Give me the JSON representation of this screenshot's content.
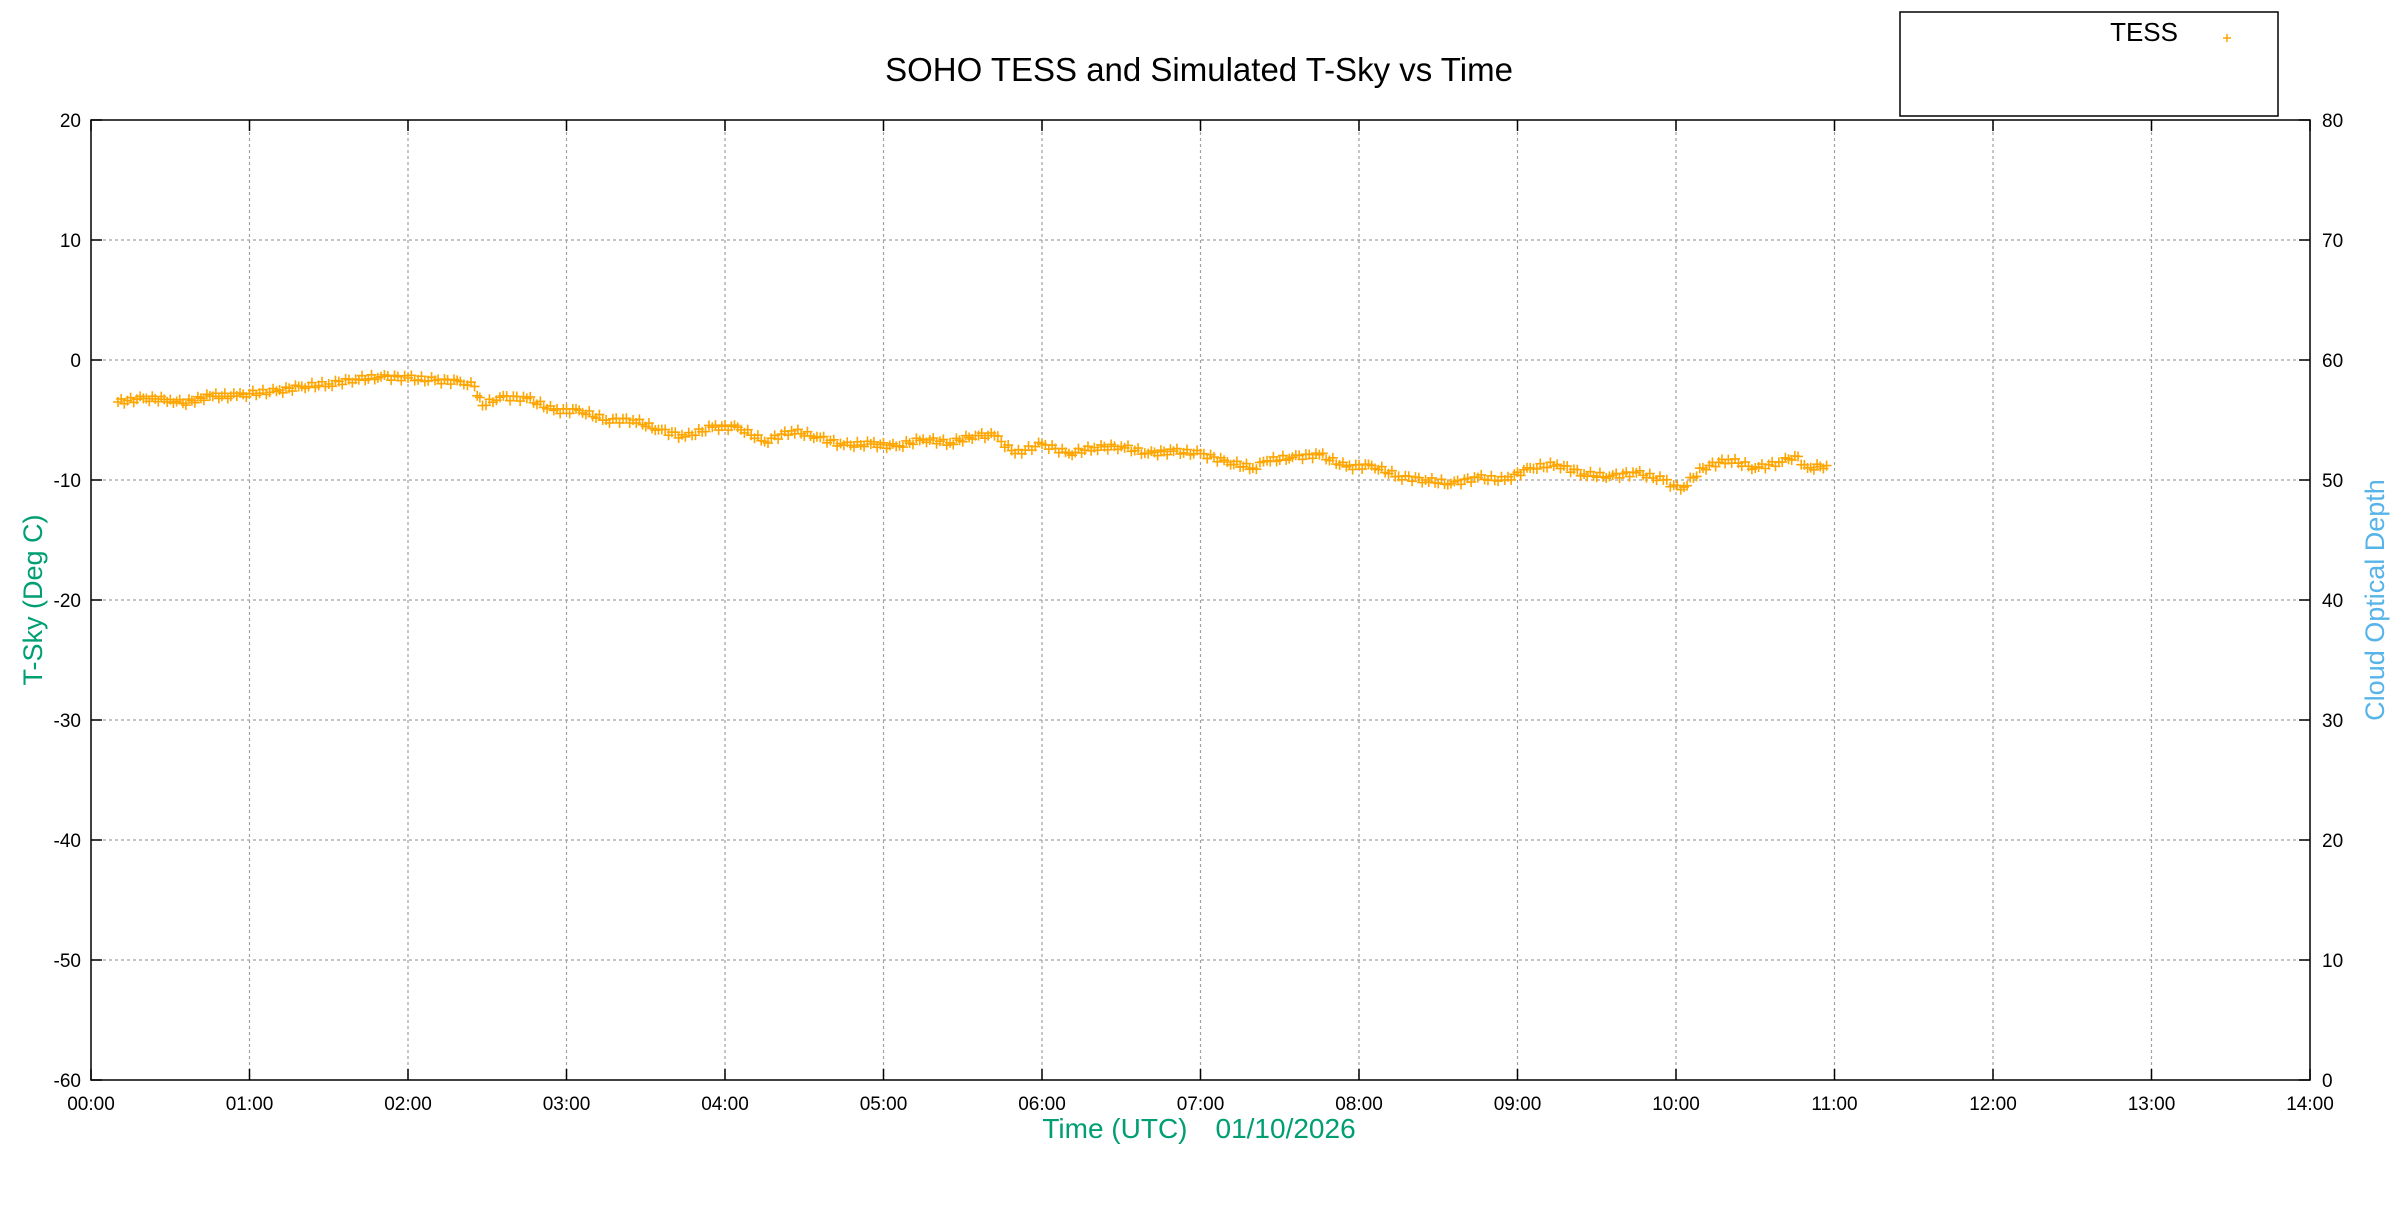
{
  "chart_data": {
    "type": "scatter",
    "title": "SOHO TESS and Simulated T-Sky vs Time",
    "xlabel": "Time (UTC)",
    "date": "01/10/2026",
    "ylabel": "T-Sky (Deg C)",
    "y2label": "Cloud Optical Depth",
    "xlim_hours": [
      0,
      14
    ],
    "ylim": [
      -60,
      20
    ],
    "y2lim": [
      0,
      80
    ],
    "x_ticks": [
      "00:00",
      "01:00",
      "02:00",
      "03:00",
      "04:00",
      "05:00",
      "06:00",
      "07:00",
      "08:00",
      "09:00",
      "10:00",
      "11:00",
      "12:00",
      "13:00",
      "14:00"
    ],
    "y_ticks": [
      "20",
      "10",
      "0",
      "-10",
      "-20",
      "-30",
      "-40",
      "-50",
      "-60"
    ],
    "y2_ticks": [
      "80",
      "70",
      "60",
      "50",
      "40",
      "30",
      "20",
      "10",
      "0"
    ],
    "grid": true,
    "legend": {
      "position": "top-right",
      "entries": [
        "TESS"
      ]
    },
    "colors": {
      "tess": "#ffa500",
      "ylabel": "#009e73",
      "y2label": "#56b4e9",
      "xlabel": "#009e73"
    },
    "series": [
      {
        "name": "TESS",
        "marker": "plus",
        "points_hours_degC": [
          [
            0.17,
            -3.5
          ],
          [
            0.33,
            -3.2
          ],
          [
            0.5,
            -3.3
          ],
          [
            0.58,
            -3.6
          ],
          [
            0.75,
            -3.0
          ],
          [
            0.92,
            -3.0
          ],
          [
            1.0,
            -2.8
          ],
          [
            1.17,
            -2.6
          ],
          [
            1.33,
            -2.2
          ],
          [
            1.5,
            -2.0
          ],
          [
            1.67,
            -1.6
          ],
          [
            1.83,
            -1.4
          ],
          [
            2.0,
            -1.5
          ],
          [
            2.17,
            -1.7
          ],
          [
            2.33,
            -1.8
          ],
          [
            2.42,
            -2.2
          ],
          [
            2.47,
            -3.8
          ],
          [
            2.58,
            -3.1
          ],
          [
            2.75,
            -3.2
          ],
          [
            2.92,
            -4.2
          ],
          [
            3.08,
            -4.2
          ],
          [
            3.25,
            -5.0
          ],
          [
            3.42,
            -5.0
          ],
          [
            3.58,
            -5.8
          ],
          [
            3.75,
            -6.4
          ],
          [
            3.92,
            -5.6
          ],
          [
            4.08,
            -5.6
          ],
          [
            4.25,
            -6.8
          ],
          [
            4.42,
            -5.9
          ],
          [
            4.58,
            -6.4
          ],
          [
            4.75,
            -7.1
          ],
          [
            4.92,
            -7.0
          ],
          [
            5.08,
            -7.2
          ],
          [
            5.25,
            -6.6
          ],
          [
            5.42,
            -6.9
          ],
          [
            5.58,
            -6.3
          ],
          [
            5.7,
            -6.3
          ],
          [
            5.83,
            -7.8
          ],
          [
            6.0,
            -7.0
          ],
          [
            6.17,
            -7.8
          ],
          [
            6.33,
            -7.3
          ],
          [
            6.5,
            -7.2
          ],
          [
            6.67,
            -7.8
          ],
          [
            6.83,
            -7.6
          ],
          [
            7.0,
            -7.8
          ],
          [
            7.17,
            -8.5
          ],
          [
            7.33,
            -9.0
          ],
          [
            7.42,
            -8.4
          ],
          [
            7.58,
            -8.1
          ],
          [
            7.75,
            -7.9
          ],
          [
            7.92,
            -8.9
          ],
          [
            8.08,
            -8.8
          ],
          [
            8.25,
            -9.7
          ],
          [
            8.42,
            -10.0
          ],
          [
            8.58,
            -10.3
          ],
          [
            8.75,
            -9.8
          ],
          [
            8.92,
            -10.0
          ],
          [
            9.08,
            -9.0
          ],
          [
            9.25,
            -8.7
          ],
          [
            9.42,
            -9.5
          ],
          [
            9.58,
            -9.7
          ],
          [
            9.75,
            -9.4
          ],
          [
            9.92,
            -10.0
          ],
          [
            10.03,
            -10.8
          ],
          [
            10.17,
            -9.0
          ],
          [
            10.33,
            -8.3
          ],
          [
            10.5,
            -9.0
          ],
          [
            10.67,
            -8.5
          ],
          [
            10.75,
            -8.0
          ],
          [
            10.83,
            -9.0
          ],
          [
            10.95,
            -8.8
          ]
        ]
      }
    ]
  }
}
